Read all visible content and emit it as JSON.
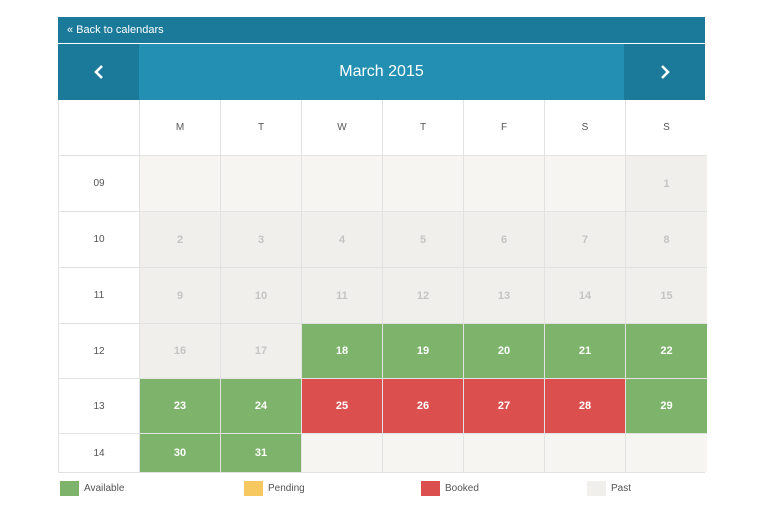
{
  "calendar": {
    "back_label": "« Back to calendars",
    "month_title": "March 2015",
    "prev_icon": "chevron-left-icon",
    "next_icon": "chevron-right-icon",
    "weekdays": [
      "M",
      "T",
      "W",
      "T",
      "F",
      "S",
      "S"
    ],
    "weeks": [
      {
        "number": "09",
        "days": [
          {
            "d": "",
            "s": "empty"
          },
          {
            "d": "",
            "s": "empty"
          },
          {
            "d": "",
            "s": "empty"
          },
          {
            "d": "",
            "s": "empty"
          },
          {
            "d": "",
            "s": "empty"
          },
          {
            "d": "",
            "s": "empty"
          },
          {
            "d": "1",
            "s": "past"
          }
        ]
      },
      {
        "number": "10",
        "days": [
          {
            "d": "2",
            "s": "past"
          },
          {
            "d": "3",
            "s": "past"
          },
          {
            "d": "4",
            "s": "past"
          },
          {
            "d": "5",
            "s": "past"
          },
          {
            "d": "6",
            "s": "past"
          },
          {
            "d": "7",
            "s": "past"
          },
          {
            "d": "8",
            "s": "past"
          }
        ]
      },
      {
        "number": "11",
        "days": [
          {
            "d": "9",
            "s": "past"
          },
          {
            "d": "10",
            "s": "past"
          },
          {
            "d": "11",
            "s": "past"
          },
          {
            "d": "12",
            "s": "past"
          },
          {
            "d": "13",
            "s": "past"
          },
          {
            "d": "14",
            "s": "past"
          },
          {
            "d": "15",
            "s": "past"
          }
        ]
      },
      {
        "number": "12",
        "days": [
          {
            "d": "16",
            "s": "past"
          },
          {
            "d": "17",
            "s": "past"
          },
          {
            "d": "18",
            "s": "available"
          },
          {
            "d": "19",
            "s": "available"
          },
          {
            "d": "20",
            "s": "available"
          },
          {
            "d": "21",
            "s": "available"
          },
          {
            "d": "22",
            "s": "available"
          }
        ]
      },
      {
        "number": "13",
        "days": [
          {
            "d": "23",
            "s": "available"
          },
          {
            "d": "24",
            "s": "available"
          },
          {
            "d": "25",
            "s": "booked"
          },
          {
            "d": "26",
            "s": "booked"
          },
          {
            "d": "27",
            "s": "booked"
          },
          {
            "d": "28",
            "s": "booked"
          },
          {
            "d": "29",
            "s": "available"
          }
        ]
      },
      {
        "number": "14",
        "days": [
          {
            "d": "30",
            "s": "available"
          },
          {
            "d": "31",
            "s": "available"
          },
          {
            "d": "",
            "s": "empty"
          },
          {
            "d": "",
            "s": "empty"
          },
          {
            "d": "",
            "s": "empty"
          },
          {
            "d": "",
            "s": "empty"
          },
          {
            "d": "",
            "s": "empty"
          }
        ]
      }
    ]
  },
  "legend": [
    {
      "label": "Available",
      "color": "#7db36a"
    },
    {
      "label": "Pending",
      "color": "#f6c85f"
    },
    {
      "label": "Booked",
      "color": "#db4f4f"
    },
    {
      "label": "Past",
      "color": "#f0efeb"
    }
  ],
  "colors": {
    "header_dark": "#1b7a99",
    "header_light": "#238fb2",
    "available": "#7db36a",
    "booked": "#db4f4f",
    "pending": "#f6c85f",
    "past": "#f0efeb",
    "empty": "#f6f5f1"
  }
}
